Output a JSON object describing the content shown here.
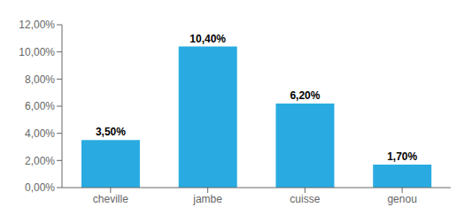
{
  "chart_data": {
    "type": "bar",
    "categories": [
      "cheville",
      "jambe",
      "cuisse",
      "genou"
    ],
    "values": [
      3.5,
      10.4,
      6.2,
      1.7
    ],
    "value_labels": [
      "3,50%",
      "10,40%",
      "6,20%",
      "1,70%"
    ],
    "data_labels": true,
    "color": "#29ABE2",
    "ylim": [
      0,
      12.0
    ],
    "yticks": [
      {
        "value": 0,
        "label": "0,00%"
      },
      {
        "value": 2,
        "label": "2,00%"
      },
      {
        "value": 4,
        "label": "4,00%"
      },
      {
        "value": 6,
        "label": "6,00%"
      },
      {
        "value": 8,
        "label": "8,00%"
      },
      {
        "value": 10,
        "label": "10,00%"
      },
      {
        "value": 12,
        "label": "12,00%"
      }
    ],
    "grid": false
  }
}
